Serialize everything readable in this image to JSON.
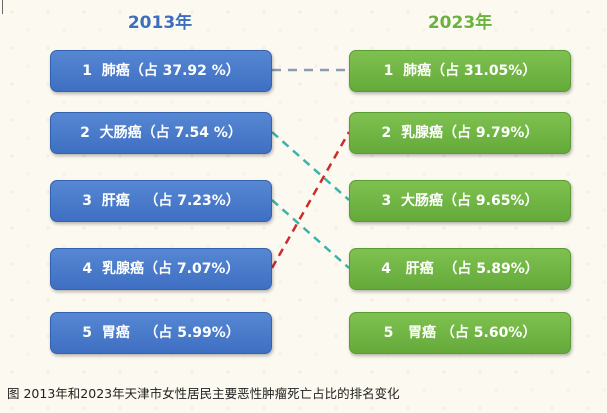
{
  "titles": {
    "left": "2013年",
    "right": "2023年"
  },
  "left_boxes": [
    "1  肺癌（占 37.92 %）",
    "2  大肠癌（占 7.54 %）",
    "3  肝癌   （占 7.23%）",
    "4  乳腺癌（占 7.07%）",
    "5  胃癌   （占 5.99%）"
  ],
  "right_boxes": [
    "1  肺癌（占 31.05%）",
    "2  乳腺癌（占 9.79%）",
    "3  大肠癌（占 9.65%）",
    "4   肝癌  （占 5.89%）",
    "5   胃癌 （占 5.60%）"
  ],
  "connectors": [
    {
      "from": 1,
      "to": 1,
      "color": "#8a9bb2",
      "style": "dashed"
    },
    {
      "from": 2,
      "to": 3,
      "color": "#3bb3a8",
      "style": "dashed"
    },
    {
      "from": 3,
      "to": 4,
      "color": "#3bb3a8",
      "style": "dashed"
    },
    {
      "from": 4,
      "to": 2,
      "color": "#cc2b2b",
      "style": "dashed"
    }
  ],
  "colors": {
    "left_box": "#4a7bcb",
    "right_box": "#72b746",
    "left_title": "#3d6ebc",
    "right_title": "#6ab13d"
  },
  "caption": "图  2013年和2023年天津市女性居民主要恶性肿瘤死亡占比的排名变化"
}
